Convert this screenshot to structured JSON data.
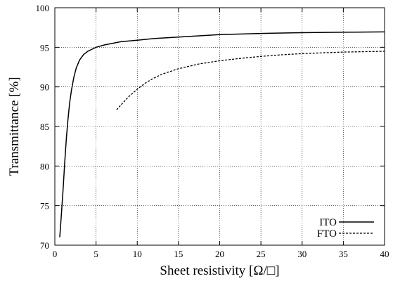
{
  "chart_data": {
    "type": "line",
    "title": "",
    "xlabel": "Sheet resistivity [Ω/□]",
    "ylabel": "Transmittance [%]",
    "xlim": [
      0,
      40
    ],
    "ylim": [
      70,
      100
    ],
    "xticks": [
      0,
      5,
      10,
      15,
      20,
      25,
      30,
      35,
      40
    ],
    "yticks": [
      70,
      75,
      80,
      85,
      90,
      95,
      100
    ],
    "grid": true,
    "legend_position": "bottom-right",
    "series": [
      {
        "name": "ITO",
        "line_style": "solid",
        "color": "#000000",
        "x": [
          0.6,
          0.8,
          1.0,
          1.2,
          1.4,
          1.6,
          1.8,
          2.0,
          2.3,
          2.6,
          3.0,
          3.5,
          4.0,
          5.0,
          6.0,
          8.0,
          10.0,
          12.0,
          15.0,
          20.0,
          25.0,
          30.0,
          35.0,
          40.0
        ],
        "y": [
          71.0,
          74.0,
          77.0,
          80.5,
          83.5,
          86.0,
          88.0,
          89.5,
          91.2,
          92.4,
          93.4,
          94.1,
          94.5,
          95.0,
          95.3,
          95.7,
          95.9,
          96.1,
          96.3,
          96.6,
          96.75,
          96.85,
          96.9,
          96.95
        ]
      },
      {
        "name": "FTO",
        "line_style": "dashed",
        "color": "#000000",
        "x": [
          7.5,
          8.0,
          9.0,
          10.0,
          11.0,
          12.0,
          13.0,
          15.0,
          17.5,
          20.0,
          22.5,
          25.0,
          27.5,
          30.0,
          35.0,
          40.0
        ],
        "y": [
          87.1,
          87.7,
          88.8,
          89.7,
          90.5,
          91.1,
          91.6,
          92.3,
          92.9,
          93.3,
          93.6,
          93.85,
          94.05,
          94.2,
          94.4,
          94.5
        ]
      }
    ]
  }
}
